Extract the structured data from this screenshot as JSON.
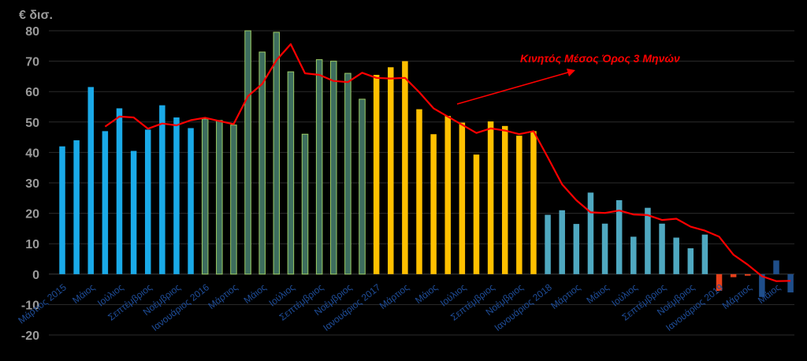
{
  "chart_data": {
    "type": "bar",
    "unit_label": "€ δισ.",
    "ylim": [
      -20,
      80
    ],
    "yticks": [
      -20,
      -10,
      0,
      10,
      20,
      30,
      40,
      50,
      60,
      70,
      80
    ],
    "grid": true,
    "values": [
      42,
      44,
      61.5,
      47,
      54.5,
      40.5,
      47.5,
      55.5,
      51.5,
      48,
      51,
      50.5,
      49,
      80,
      73,
      79.5,
      66.5,
      46,
      70.5,
      70,
      66,
      57.5,
      65.5,
      68,
      70,
      54.2,
      46,
      52,
      49.8,
      39.3,
      50.2,
      48.7,
      45.5,
      47,
      19.5,
      21,
      16.5,
      26.8,
      16.6,
      24.3,
      12.3,
      21.8,
      16.6,
      12,
      8.5,
      13,
      -5.5,
      -1,
      -0.5,
      -7.5,
      4.5,
      -6
    ],
    "bar_colors": [
      "#1aaae8",
      "#1aaae8",
      "#1aaae8",
      "#1aaae8",
      "#1aaae8",
      "#1aaae8",
      "#1aaae8",
      "#1aaae8",
      "#1aaae8",
      "#1aaae8",
      "#3d6d5e",
      "#3d6d5e",
      "#3d6d5e",
      "#3d6d5e",
      "#3d6d5e",
      "#3d6d5e",
      "#3d6d5e",
      "#3d6d5e",
      "#3d6d5e",
      "#3d6d5e",
      "#3d6d5e",
      "#3d6d5e",
      "#ffc000",
      "#ffc000",
      "#ffc000",
      "#ffc000",
      "#ffc000",
      "#ffc000",
      "#ffc000",
      "#ffc000",
      "#ffc000",
      "#ffc000",
      "#ffc000",
      "#ffc000",
      "#4fa8c0",
      "#4fa8c0",
      "#4fa8c0",
      "#4fa8c0",
      "#4fa8c0",
      "#4fa8c0",
      "#4fa8c0",
      "#4fa8c0",
      "#4fa8c0",
      "#4fa8c0",
      "#4fa8c0",
      "#4fa8c0",
      "#e8401a",
      "#e8401a",
      "#e8401a",
      "#1f4e8a",
      "#1f4e8a",
      "#1f4e8a"
    ],
    "bar_edge_colors": [
      "",
      "",
      "",
      "",
      "",
      "",
      "",
      "",
      "",
      "",
      "#9ccc65",
      "#9ccc65",
      "#9ccc65",
      "#9ccc65",
      "#9ccc65",
      "#9ccc65",
      "#9ccc65",
      "#9ccc65",
      "#9ccc65",
      "#9ccc65",
      "#9ccc65",
      "#9ccc65",
      "",
      "",
      "",
      "",
      "",
      "",
      "",
      "",
      "",
      "",
      "",
      "",
      "",
      "",
      "",
      "",
      "",
      "",
      "",
      "",
      "",
      "",
      "",
      "",
      "",
      "",
      "",
      "",
      "",
      ""
    ],
    "moving_average": {
      "start_index": 3,
      "color": "#ff0000",
      "values": [
        48.5,
        51.8,
        51.5,
        47.8,
        49.5,
        48.9,
        50.6,
        51.4,
        50.3,
        49.3,
        58.5,
        62.5,
        70.3,
        75.6,
        66,
        65.5,
        63.5,
        63.1,
        66.2,
        64.5,
        64.3,
        64.5,
        59.8,
        54.5,
        51.8,
        49.1,
        46.4,
        47.9,
        47.2,
        46,
        47,
        38.4,
        29.5,
        24.3,
        20.3,
        20.1,
        20.9,
        19.6,
        19.4,
        17.8,
        18.2,
        15.6,
        14.3,
        12.3,
        6.4,
        3.1,
        -0.7,
        -2.3,
        -2.2
      ]
    },
    "annotation": "Κινητός  Μέσος Όρος  3 Μηνών",
    "x_tick_labels": [
      {
        "index": 0,
        "label": "Μάρτιος 2015"
      },
      {
        "index": 2,
        "label": "Μάιος"
      },
      {
        "index": 4,
        "label": "Ιούλιος"
      },
      {
        "index": 6,
        "label": "Σεπτέμβριος"
      },
      {
        "index": 8,
        "label": "Νοέμβριος"
      },
      {
        "index": 10,
        "label": "Ιανουάριος 2016"
      },
      {
        "index": 12,
        "label": "Μάρτιος"
      },
      {
        "index": 14,
        "label": "Μάιος"
      },
      {
        "index": 16,
        "label": "Ιούλιος"
      },
      {
        "index": 18,
        "label": "Σεπτέμβριος"
      },
      {
        "index": 20,
        "label": "Νοέμβριος"
      },
      {
        "index": 22,
        "label": "Ιανουάριος 2017"
      },
      {
        "index": 24,
        "label": "Μάρτιος"
      },
      {
        "index": 26,
        "label": "Μάιος"
      },
      {
        "index": 28,
        "label": "Ιούλιος"
      },
      {
        "index": 30,
        "label": "Σεπτέμβριος"
      },
      {
        "index": 32,
        "label": "Νοέμβριος"
      },
      {
        "index": 34,
        "label": "Ιανουάριος 2018"
      },
      {
        "index": 36,
        "label": "Μάρτιος"
      },
      {
        "index": 38,
        "label": "Μάιος"
      },
      {
        "index": 40,
        "label": "Ιούλιος"
      },
      {
        "index": 42,
        "label": "Σεπτέμβριος"
      },
      {
        "index": 44,
        "label": "Νοέμβριος"
      },
      {
        "index": 46,
        "label": "Ιανουάριος 2019"
      },
      {
        "index": 48,
        "label": "Μάρτιος"
      },
      {
        "index": 50,
        "label": "Μάιος"
      }
    ]
  }
}
